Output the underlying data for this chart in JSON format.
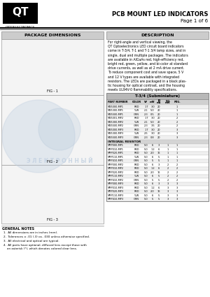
{
  "title_right1": "PCB MOUNT LED INDICATORS",
  "title_right2": "Page 1 of 6",
  "logo_text": "QT",
  "logo_sub": "OPTOELECTRONICS",
  "section1_title": "PACKAGE DIMENSIONS",
  "section2_title": "DESCRIPTION",
  "description_text": "For right-angle and vertical viewing, the\nQT Optoelectronics LED circuit board indicators\ncome in T-3/4, T-1 and T-1 3/4 lamp sizes, and in\nsingle, dual and multiple packages. The indicators\nare available in AlGaAs red, high-efficiency red,\nbright red, green, yellow, and bi-color at standard\ndrive currents, as well as at 2 mA drive current.\nTo reduce component cost and save space, 5 V\nand 12 V types are available with integrated\nresistors. The LEDs are packaged in a black plas-\ntic housing for optical contrast, and the housing\nmeets UL94V-0 flammability specifications.",
  "table_title": "T-3/4 (Subminiature)",
  "general_notes_title": "GENERAL NOTES",
  "notes": [
    "1.  All dimensions are in inches (mm).",
    "2.  Tolerances ± .01 (.3) ca. .030 unless otherwise specified.",
    "3.  All electrical and optical are typical.",
    "4.  All parts have optional, diffused lens except those with\n    an asterisk (*), which denotes colored clear lens."
  ],
  "fig1_label": "FIG - 1",
  "fig2_label": "FIG - 2",
  "fig3_label": "FIG - 3",
  "bg_color": "#ffffff",
  "watermark_color": "#c0cfe0",
  "watermark_text": "Э Л Е К Т Р О Н Н Ы Й",
  "col_positions": [
    1,
    43,
    57,
    66,
    75,
    88,
    101
  ],
  "col_labels": [
    "PART NUMBER",
    "COLOR",
    "VF",
    "mW",
    "JD",
    "F.O.",
    "PKG."
  ],
  "col_labels2": [
    "",
    "",
    "",
    "",
    "mA",
    "mW",
    ""
  ],
  "col_aligns": [
    "left",
    "center",
    "center",
    "center",
    "center",
    "center",
    "center"
  ],
  "table_rows": [
    [
      "MV5000-MP1",
      "RED",
      "1.7",
      "3.0",
      "20",
      "",
      "1"
    ],
    [
      "MV5300-MP1",
      "YLW",
      "2.1",
      "5.0",
      "20",
      "",
      "1"
    ],
    [
      "MV5500-MP1",
      "GRN",
      "2.3",
      "0.5",
      "20",
      "",
      "1"
    ],
    [
      "MV5001-MP2",
      "RED",
      "1.7",
      "3.0",
      "20",
      "",
      "2"
    ],
    [
      "MV5300-MP2",
      "YLW",
      "2.1",
      "5.0",
      "20",
      "",
      "2"
    ],
    [
      "MV5500-MP2",
      "GRN",
      "2.3",
      "3.5",
      "20",
      "",
      "2"
    ],
    [
      "MV5000-MP3",
      "RED",
      "1.7",
      "3.0",
      "20",
      "",
      "3"
    ],
    [
      "MV5300-MP3",
      "YLW",
      "2.5",
      "3.0",
      "20",
      "",
      "3"
    ],
    [
      "MV5500-MP3",
      "GRN",
      "2.3",
      "0.8",
      "20",
      "",
      "3"
    ],
    [
      "INTEGRAL RESISTOR",
      "",
      "",
      "",
      "",
      "",
      ""
    ],
    [
      "MRP000-MP1",
      "RED",
      "5.0",
      "6",
      "3",
      "1",
      "1"
    ],
    [
      "MRP010-MP1",
      "RED",
      "5.0",
      "1.2",
      "6",
      "1",
      "1"
    ],
    [
      "MRP020-MP1",
      "RED",
      "5.0",
      "2.0",
      "16",
      "1",
      "1"
    ],
    [
      "MRP110-MP1",
      "YLW",
      "5.0",
      "6",
      "5",
      "1",
      "1"
    ],
    [
      "MRP410-MP1",
      "GRN",
      "5.0",
      "5",
      "5",
      "1",
      "1"
    ],
    [
      "MRP000-MP2",
      "RED",
      "5.0",
      "6",
      "3",
      "2",
      "2"
    ],
    [
      "MRP010-MP2",
      "RED",
      "5.0",
      "1.2",
      "6",
      "2",
      "2"
    ],
    [
      "MRP020-MP2",
      "RED",
      "5.0",
      "2.0",
      "16",
      "2",
      "2"
    ],
    [
      "MRP110-MP2",
      "YLW",
      "5.0",
      "6",
      "5",
      "2",
      "2"
    ],
    [
      "MRP410-MP2",
      "GRN",
      "5.0",
      "5",
      "5",
      "2",
      "2"
    ],
    [
      "MRP000-MP3",
      "RED",
      "5.0",
      "6",
      "3",
      "3",
      "3"
    ],
    [
      "MRP010-MP3",
      "RED",
      "5.0",
      "1.2",
      "6",
      "3",
      "3"
    ],
    [
      "MRP020-MP3",
      "RED",
      "5.0",
      "2.0",
      "16",
      "3",
      "3"
    ],
    [
      "MRP110-MP3",
      "YLW",
      "5.0",
      "6",
      "5",
      "3",
      "3"
    ],
    [
      "MRP410-MP3",
      "GRN",
      "5.0",
      "5",
      "5",
      "3",
      "3"
    ]
  ]
}
